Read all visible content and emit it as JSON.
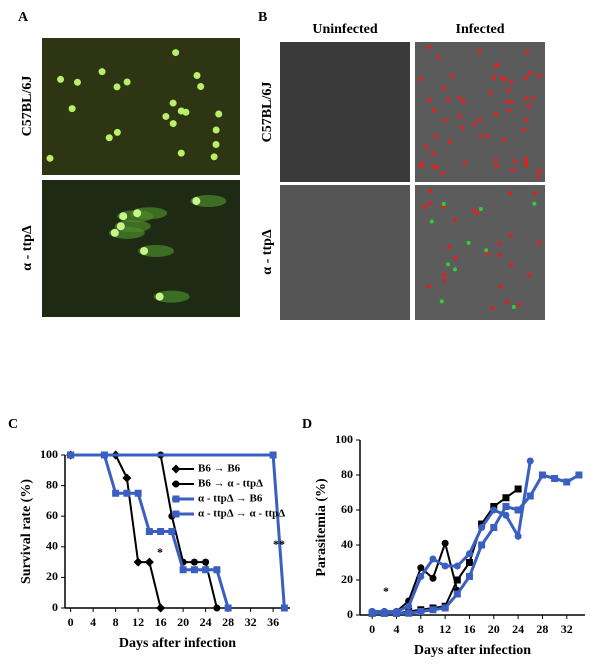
{
  "a": {
    "label": "A",
    "rows": [
      "C57BL/6J",
      "α - ttpΔ"
    ]
  },
  "b": {
    "label": "B",
    "columns": [
      "Uninfected",
      "Infected"
    ],
    "rows": [
      "C57BL/6J",
      "α - ttpΔ"
    ]
  },
  "chart_data": [
    {
      "type": "line",
      "panel": "C",
      "xlabel": "Days after infection",
      "ylabel": "Survival rate (%)",
      "xlim": [
        -1,
        39
      ],
      "xticks": [
        0,
        4,
        8,
        12,
        16,
        20,
        24,
        28,
        32,
        36
      ],
      "ylim": [
        0,
        100
      ],
      "yticks": [
        0,
        20,
        40,
        60,
        80,
        100
      ],
      "legend": "upper right",
      "annotations": [
        "*",
        "**"
      ],
      "series": [
        {
          "name": "B6 → B6",
          "color": "#000000",
          "marker": "diamond",
          "x": [
            0,
            8,
            10,
            12,
            14,
            16
          ],
          "values": [
            100,
            100,
            85,
            30,
            30,
            0
          ]
        },
        {
          "name": "B6 → α - ttpΔ",
          "color": "#000000",
          "marker": "circle",
          "x": [
            0,
            16,
            18,
            20,
            22,
            24,
            26
          ],
          "values": [
            100,
            100,
            60,
            30,
            30,
            30,
            0
          ]
        },
        {
          "name": "α - ttpΔ → B6",
          "color": "#3a5fc0",
          "marker": "square",
          "x": [
            0,
            6,
            8,
            10,
            12,
            14,
            16,
            18,
            20,
            22,
            24,
            26,
            28
          ],
          "values": [
            100,
            100,
            75,
            75,
            75,
            50,
            50,
            50,
            25,
            25,
            25,
            25,
            0
          ]
        },
        {
          "name": "α - ttpΔ → α - ttpΔ",
          "color": "#3a5fc0",
          "marker": "square",
          "x": [
            0,
            36,
            38
          ],
          "values": [
            100,
            100,
            0
          ]
        }
      ]
    },
    {
      "type": "line",
      "panel": "D",
      "xlabel": "Days after infection",
      "ylabel": "Parasitemia (%)",
      "xlim": [
        -2,
        35
      ],
      "xticks": [
        0,
        4,
        8,
        12,
        16,
        20,
        24,
        28,
        32
      ],
      "ylim": [
        0,
        100
      ],
      "yticks": [
        0,
        20,
        40,
        60,
        80,
        100
      ],
      "annotations": [
        "*"
      ],
      "series": [
        {
          "color": "#000000",
          "marker": "circle",
          "x": [
            0,
            2,
            4,
            6,
            8,
            10,
            12,
            14
          ],
          "values": [
            2,
            2,
            2,
            8,
            27,
            21,
            41,
            14
          ]
        },
        {
          "color": "#000000",
          "marker": "square",
          "x": [
            0,
            2,
            4,
            6,
            8,
            10,
            12,
            14,
            16,
            18,
            20,
            22,
            24
          ],
          "values": [
            1,
            1,
            1,
            2,
            3,
            4,
            5,
            20,
            30,
            52,
            62,
            67,
            72
          ]
        },
        {
          "color": "#3a5fc0",
          "marker": "circle",
          "x": [
            0,
            2,
            4,
            6,
            8,
            10,
            12,
            14,
            16,
            18,
            20,
            22,
            24,
            26
          ],
          "values": [
            2,
            2,
            2,
            5,
            22,
            32,
            28,
            28,
            35,
            50,
            60,
            57,
            45,
            88
          ]
        },
        {
          "color": "#3a5fc0",
          "marker": "square",
          "x": [
            0,
            2,
            4,
            6,
            8,
            10,
            12,
            14,
            16,
            18,
            20,
            22,
            24,
            26,
            28,
            30,
            32,
            34
          ],
          "values": [
            1,
            1,
            1,
            1,
            2,
            3,
            4,
            12,
            22,
            40,
            50,
            62,
            60,
            68,
            80,
            78,
            76,
            80
          ]
        }
      ]
    }
  ]
}
